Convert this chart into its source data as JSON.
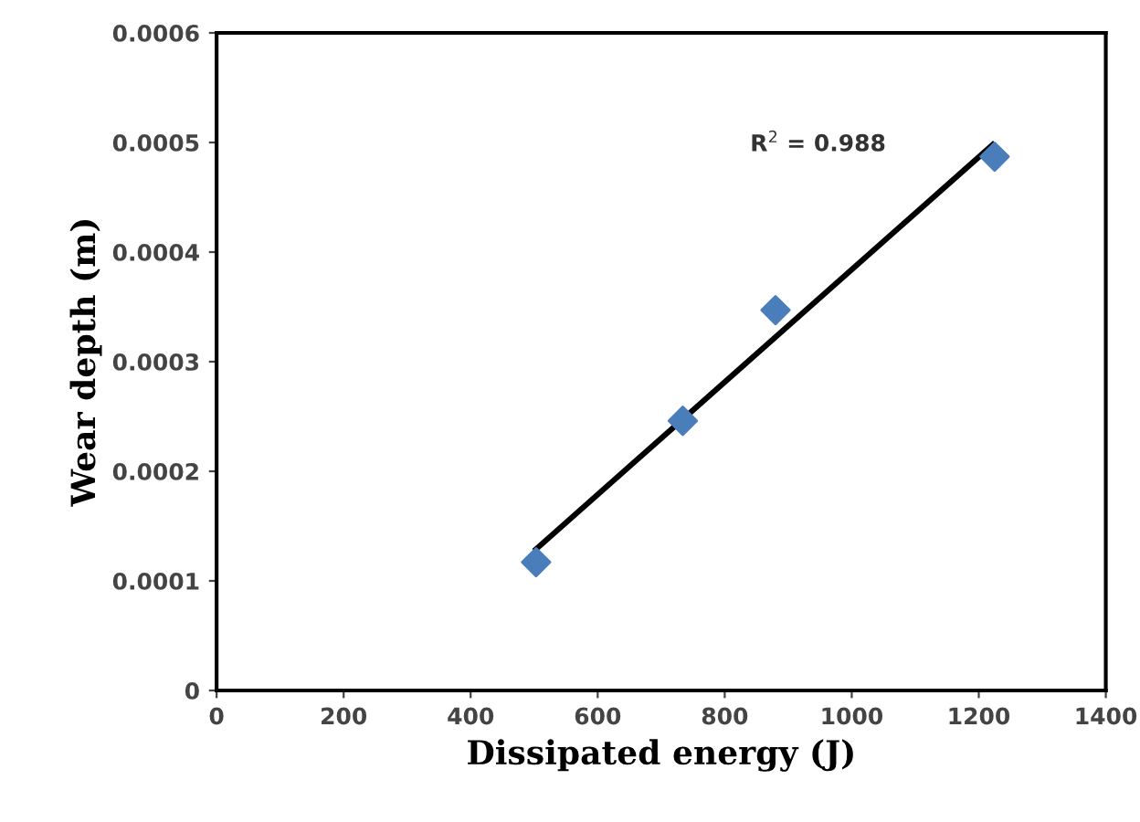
{
  "chart_data": {
    "type": "scatter",
    "xlabel": "Dissipated energy (J)",
    "ylabel": "Wear depth (m)",
    "series": [
      {
        "color": "#4a7ebb",
        "marker": "diamond",
        "x": [
          503,
          734,
          880,
          1225
        ],
        "values": [
          0.000117,
          0.000246,
          0.000347,
          0.000487
        ]
      },
      {
        "type": "line",
        "color": "#000000",
        "marker": "none",
        "line_style": "solid",
        "x": [
          503,
          1222
        ],
        "values": [
          0.000129,
          0.000498
        ]
      }
    ],
    "annotations": [
      "R$^{2}$ = 0.988"
    ],
    "xlim": [
      0,
      1400
    ],
    "xticks": [
      0,
      200,
      400,
      600,
      800,
      1000,
      1200,
      1400
    ],
    "ylim": [
      0,
      0.0006
    ],
    "yticks": [
      0,
      0.0001,
      0.0002,
      0.0003,
      0.0004,
      0.0005,
      0.0006
    ],
    "grid": false,
    "legend": false
  }
}
